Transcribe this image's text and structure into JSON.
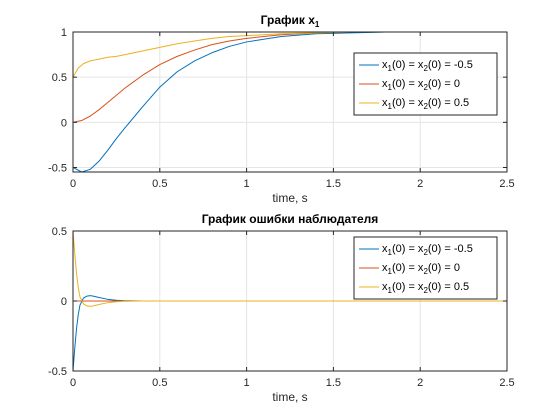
{
  "chart_data": [
    {
      "type": "line",
      "title": "График x",
      "title_sub": "1",
      "xlabel": "time, s",
      "ylabel": "",
      "xlim": [
        0,
        2.5
      ],
      "ylim": [
        -0.55,
        1
      ],
      "xticks": [
        0,
        0.5,
        1,
        1.5,
        2,
        2.5
      ],
      "xtick_labels": [
        "0",
        "0.5",
        "1",
        "1.5",
        "2",
        "2.5"
      ],
      "yticks": [
        -0.5,
        0,
        0.5,
        1
      ],
      "ytick_labels": [
        "-0.5",
        "0",
        "0.5",
        "1"
      ],
      "grid": true,
      "legend_position": "top-right",
      "series": [
        {
          "name": "x1(0) = x2(0) = -0.5",
          "color": "#0072BD",
          "x": [
            0,
            0.05,
            0.1,
            0.15,
            0.2,
            0.25,
            0.3,
            0.4,
            0.5,
            0.6,
            0.7,
            0.8,
            0.9,
            1.0,
            1.2,
            1.4,
            1.6,
            1.8,
            2.0,
            2.5
          ],
          "y": [
            -0.5,
            -0.55,
            -0.52,
            -0.43,
            -0.31,
            -0.18,
            -0.06,
            0.17,
            0.39,
            0.56,
            0.68,
            0.77,
            0.84,
            0.89,
            0.95,
            0.98,
            0.99,
            1.0,
            1.0,
            1.0
          ]
        },
        {
          "name": "x1(0) = x2(0) = 0",
          "color": "#D95319",
          "x": [
            0,
            0.05,
            0.1,
            0.15,
            0.2,
            0.25,
            0.3,
            0.4,
            0.5,
            0.6,
            0.7,
            0.8,
            0.9,
            1.0,
            1.2,
            1.4,
            1.6,
            1.8,
            2.0,
            2.5
          ],
          "y": [
            0,
            0.02,
            0.07,
            0.14,
            0.22,
            0.3,
            0.38,
            0.52,
            0.64,
            0.73,
            0.8,
            0.86,
            0.9,
            0.93,
            0.97,
            0.99,
            1.0,
            1.0,
            1.0,
            1.0
          ]
        },
        {
          "name": "x1(0) = x2(0) = 0.5",
          "color": "#EDB120",
          "x": [
            0,
            0.03,
            0.06,
            0.1,
            0.15,
            0.2,
            0.25,
            0.3,
            0.4,
            0.5,
            0.6,
            0.7,
            0.8,
            0.9,
            1.0,
            1.2,
            1.4,
            1.6,
            2.0,
            2.5
          ],
          "y": [
            0.5,
            0.6,
            0.65,
            0.68,
            0.7,
            0.72,
            0.73,
            0.75,
            0.79,
            0.83,
            0.87,
            0.9,
            0.93,
            0.95,
            0.96,
            0.98,
            0.99,
            1.0,
            1.0,
            1.0
          ]
        }
      ]
    },
    {
      "type": "line",
      "title": "График ошибки наблюдателя",
      "xlabel": "time, s",
      "ylabel": "",
      "xlim": [
        0,
        2.5
      ],
      "ylim": [
        -0.5,
        0.5
      ],
      "xticks": [
        0,
        0.5,
        1,
        1.5,
        2,
        2.5
      ],
      "xtick_labels": [
        "0",
        "0.5",
        "1",
        "1.5",
        "2",
        "2.5"
      ],
      "yticks": [
        -0.5,
        0,
        0.5
      ],
      "ytick_labels": [
        "-0.5",
        "0",
        "0.5"
      ],
      "grid": true,
      "legend_position": "top-right",
      "series": [
        {
          "name": "x1(0) = x2(0) = -0.5",
          "color": "#0072BD",
          "x": [
            0,
            0.01,
            0.02,
            0.03,
            0.04,
            0.06,
            0.08,
            0.1,
            0.12,
            0.15,
            0.2,
            0.25,
            0.3,
            0.4,
            0.5,
            2.5
          ],
          "y": [
            -0.5,
            -0.34,
            -0.2,
            -0.1,
            -0.03,
            0.02,
            0.035,
            0.038,
            0.034,
            0.025,
            0.012,
            0.005,
            0.002,
            0.0,
            0.0,
            0.0
          ]
        },
        {
          "name": "x1(0) = x2(0) = 0",
          "color": "#D95319",
          "x": [
            0,
            2.5
          ],
          "y": [
            0,
            0
          ]
        },
        {
          "name": "x1(0) = x2(0) = 0.5",
          "color": "#EDB120",
          "x": [
            0,
            0.01,
            0.02,
            0.03,
            0.04,
            0.06,
            0.08,
            0.1,
            0.12,
            0.15,
            0.2,
            0.25,
            0.3,
            0.4,
            0.5,
            2.5
          ],
          "y": [
            0.5,
            0.34,
            0.2,
            0.1,
            0.03,
            -0.02,
            -0.035,
            -0.038,
            -0.034,
            -0.025,
            -0.012,
            -0.005,
            -0.002,
            0.0,
            0.0,
            0.0
          ]
        }
      ]
    }
  ]
}
